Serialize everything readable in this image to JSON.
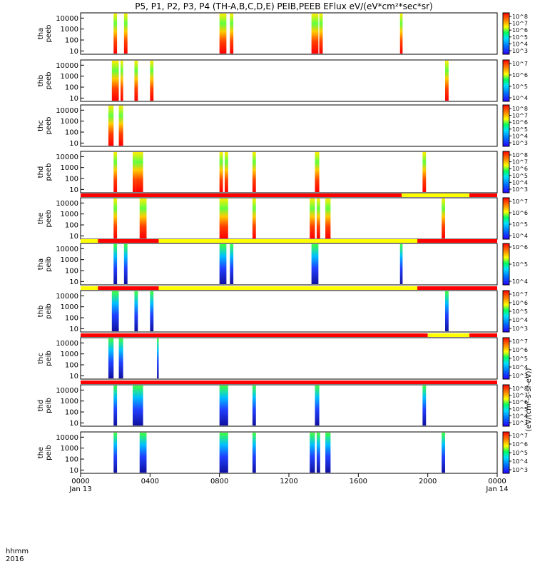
{
  "title": "P5, P1, P2, P3, P4 (TH-A,B,C,D,E) PEIB,PEEB EFlux eV/(eV*cm²*sec*sr)",
  "footer": {
    "xaxis_label_line1": "hhmm",
    "xaxis_label_line2": "2016",
    "xticks": [
      "0000",
      "0400",
      "0800",
      "1200",
      "1600",
      "2000",
      "0000"
    ],
    "xdates": [
      "Jan 13",
      "",
      "",
      "",
      "",
      "",
      "Jan 14"
    ]
  },
  "colorbar_side_label": "(eV/(cm²-s-sr-eV))",
  "colors": {
    "red": "#ff0000",
    "yellow": "#ffff00",
    "black": "#000000",
    "spectrum_low": "#1400ff",
    "spectrum_high": "#ff0000"
  },
  "chart_data": {
    "type": "heatmap",
    "xlim": [
      0,
      24
    ],
    "ylim": [
      5,
      30000
    ],
    "yscale": "log",
    "ytick_labels": [
      "10000",
      "1000",
      "100",
      "10"
    ],
    "panels": [
      {
        "label1": "tha",
        "label2": "peeb",
        "cbar_ticks": [
          "10^8",
          "10^7",
          "10^6",
          "10^5",
          "10^4",
          "10^3"
        ],
        "bursts": [
          [
            1.9,
            2.1
          ],
          [
            2.5,
            2.7
          ],
          [
            8.0,
            8.4
          ],
          [
            8.6,
            8.8
          ],
          [
            13.3,
            13.7
          ],
          [
            13.75,
            13.95
          ],
          [
            18.4,
            18.55
          ]
        ]
      },
      {
        "label1": "thb",
        "label2": "peeb",
        "cbar_ticks": [
          "10^7",
          "10^6",
          "10^5",
          "10^4"
        ],
        "bursts": [
          [
            1.8,
            2.2
          ],
          [
            2.3,
            2.45
          ],
          [
            3.1,
            3.3
          ],
          [
            4.0,
            4.2
          ],
          [
            21.0,
            21.2
          ]
        ]
      },
      {
        "label1": "thc",
        "label2": "peeb",
        "cbar_ticks": [
          "10^8",
          "10^7",
          "10^6",
          "10^5",
          "10^4",
          "10^3"
        ],
        "bursts": [
          [
            1.6,
            1.9
          ],
          [
            2.2,
            2.45
          ]
        ]
      },
      {
        "label1": "thd",
        "label2": "peeb",
        "cbar_ticks": [
          "10^8",
          "10^7",
          "10^6",
          "10^5",
          "10^4",
          "10^3"
        ],
        "bursts": [
          [
            1.9,
            2.1
          ],
          [
            3.0,
            3.2
          ],
          [
            3.2,
            3.6
          ],
          [
            8.0,
            8.2
          ],
          [
            8.3,
            8.5
          ],
          [
            9.9,
            10.1
          ],
          [
            13.5,
            13.75
          ],
          [
            19.7,
            19.9
          ]
        ]
      },
      {
        "label1": "the",
        "label2": "peeb",
        "cbar_ticks": [
          "10^7",
          "10^6",
          "10^5",
          "10^4"
        ],
        "bursts": [
          [
            1.9,
            2.1
          ],
          [
            3.4,
            3.8
          ],
          [
            8.0,
            8.5
          ],
          [
            9.9,
            10.1
          ],
          [
            13.2,
            13.5
          ],
          [
            13.6,
            13.8
          ],
          [
            14.1,
            14.4
          ],
          [
            20.8,
            21.0
          ]
        ]
      },
      {
        "label1": "tha",
        "label2": "peib",
        "cbar_ticks": [
          "10^6",
          "10^5",
          "10^4"
        ],
        "bursts": [
          [
            1.9,
            2.1
          ],
          [
            2.5,
            2.7
          ],
          [
            8.0,
            8.4
          ],
          [
            8.6,
            8.8
          ],
          [
            13.3,
            13.7
          ],
          [
            18.4,
            18.55
          ]
        ]
      },
      {
        "label1": "thb",
        "label2": "peib",
        "cbar_ticks": [
          "10^7",
          "10^6",
          "10^5",
          "10^4",
          "10^3"
        ],
        "bursts": [
          [
            1.8,
            2.2
          ],
          [
            3.1,
            3.3
          ],
          [
            4.0,
            4.2
          ],
          [
            21.0,
            21.2
          ]
        ]
      },
      {
        "label1": "thc",
        "label2": "peib",
        "cbar_ticks": [
          "10^7",
          "10^6",
          "10^5",
          "10^4",
          "10^3"
        ],
        "bursts": [
          [
            1.6,
            1.9
          ],
          [
            2.2,
            2.45
          ],
          [
            4.4,
            4.5
          ]
        ]
      },
      {
        "label1": "thd",
        "label2": "peib",
        "cbar_ticks": [
          "10^8",
          "10^7",
          "10^6",
          "10^5",
          "10^4",
          "10^3"
        ],
        "bursts": [
          [
            1.9,
            2.1
          ],
          [
            3.0,
            3.6
          ],
          [
            8.0,
            8.5
          ],
          [
            9.9,
            10.1
          ],
          [
            13.5,
            13.75
          ],
          [
            19.7,
            19.9
          ]
        ]
      },
      {
        "label1": "the",
        "label2": "peib",
        "cbar_ticks": [
          "10^7",
          "10^6",
          "10^5",
          "10^4",
          "10^3"
        ],
        "bursts": [
          [
            1.9,
            2.1
          ],
          [
            3.4,
            3.8
          ],
          [
            8.0,
            8.5
          ],
          [
            9.9,
            10.1
          ],
          [
            13.2,
            13.5
          ],
          [
            13.6,
            13.8
          ],
          [
            14.1,
            14.4
          ],
          [
            20.8,
            21.0
          ]
        ]
      }
    ],
    "mode_bars": [
      {
        "after_panel": 4,
        "segments": [
          {
            "from": 0,
            "to": 18.5,
            "color": "red"
          },
          {
            "from": 18.5,
            "to": 22.4,
            "color": "yellow"
          },
          {
            "from": 22.4,
            "to": 24,
            "color": "red"
          }
        ]
      },
      {
        "after_panel": 5,
        "segments": [
          {
            "from": 0,
            "to": 1.0,
            "color": "yellow"
          },
          {
            "from": 1.0,
            "to": 4.5,
            "color": "red"
          },
          {
            "from": 4.5,
            "to": 19.4,
            "color": "yellow"
          },
          {
            "from": 19.4,
            "to": 24,
            "color": "red"
          }
        ]
      },
      {
        "after_panel": 6,
        "segments": [
          {
            "from": 0,
            "to": 1.0,
            "color": "yellow"
          },
          {
            "from": 1.0,
            "to": 4.5,
            "color": "red"
          },
          {
            "from": 4.5,
            "to": 19.4,
            "color": "yellow"
          },
          {
            "from": 19.4,
            "to": 24,
            "color": "red"
          }
        ]
      },
      {
        "after_panel": 7,
        "segments": [
          {
            "from": 0,
            "to": 20.0,
            "color": "red"
          },
          {
            "from": 20.0,
            "to": 22.4,
            "color": "yellow"
          },
          {
            "from": 22.4,
            "to": 24,
            "color": "red"
          }
        ]
      },
      {
        "after_panel": 8,
        "segments": [
          {
            "from": 0,
            "to": 24,
            "color": "red"
          }
        ]
      }
    ]
  }
}
